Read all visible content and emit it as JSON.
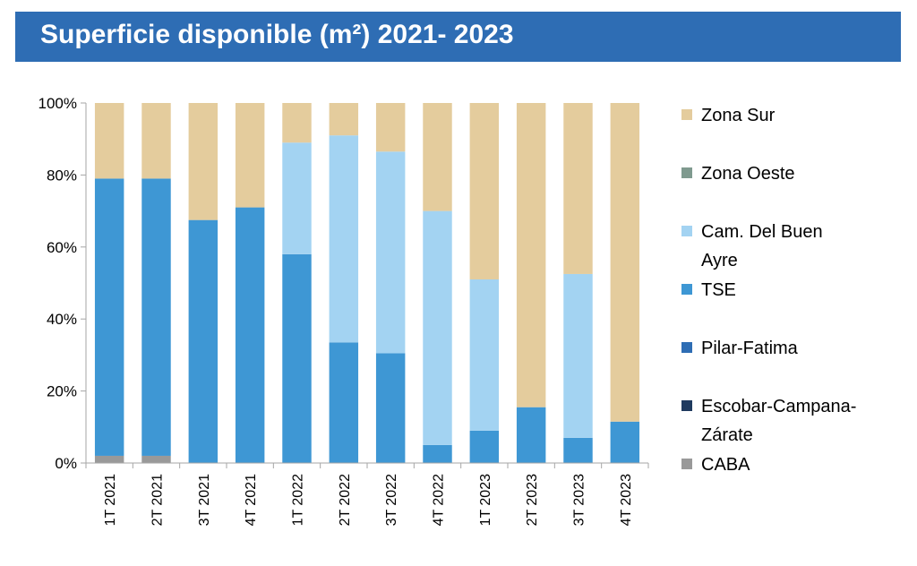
{
  "header": {
    "title": "Superficie disponible (m²) 2021- 2023"
  },
  "chart_data": {
    "type": "bar",
    "stacked": true,
    "normalized_percent": true,
    "title": "Superficie disponible (m²) 2021- 2023",
    "xlabel": "",
    "ylabel": "",
    "ylim": [
      0,
      100
    ],
    "y_ticks": [
      "0%",
      "20%",
      "40%",
      "60%",
      "80%",
      "100%"
    ],
    "categories": [
      "1T 2021",
      "2T 2021",
      "3T 2021",
      "4T 2021",
      "1T 2022",
      "2T 2022",
      "3T 2022",
      "4T 2022",
      "1T 2023",
      "2T 2023",
      "3T 2023",
      "4T 2023"
    ],
    "legend_position": "right",
    "series": [
      {
        "name": "CABA",
        "color": "#999999",
        "values": [
          2,
          2,
          0,
          0,
          0,
          0,
          0,
          0,
          0,
          0,
          0,
          0
        ]
      },
      {
        "name": "Escobar-Campana-Zárate",
        "color": "#1f3a5f",
        "values": [
          0,
          0,
          0,
          0,
          0,
          0,
          0,
          0,
          0,
          0,
          0,
          0
        ]
      },
      {
        "name": "Pilar-Fatima",
        "color": "#2e6db4",
        "values": [
          0,
          0,
          0,
          0,
          0,
          0,
          0,
          0,
          0,
          0,
          0,
          0
        ]
      },
      {
        "name": "TSE",
        "color": "#3e97d4",
        "values": [
          77,
          77,
          67.5,
          71,
          58,
          33.5,
          30.5,
          5,
          9,
          15.5,
          7,
          11.5
        ]
      },
      {
        "name": "Cam. Del Buen Ayre",
        "color": "#a3d3f2",
        "values": [
          0,
          0,
          0,
          0,
          31,
          57.5,
          56,
          65,
          42,
          0,
          45.5,
          0
        ]
      },
      {
        "name": "Zona Oeste",
        "color": "#7f9a8f",
        "values": [
          0,
          0,
          0,
          0,
          0,
          0,
          0,
          0,
          0,
          0,
          0,
          0
        ]
      },
      {
        "name": "Zona Sur",
        "color": "#e4cc9d",
        "values": [
          21,
          21,
          32.5,
          29,
          11,
          9,
          13.5,
          30,
          49,
          84.5,
          47.5,
          88.5
        ]
      }
    ],
    "legend": [
      {
        "label_lines": [
          "Zona Sur"
        ],
        "color": "#e4cc9d"
      },
      {
        "label_lines": [
          "Zona Oeste"
        ],
        "color": "#7f9a8f"
      },
      {
        "label_lines": [
          "Cam. Del Buen",
          "Ayre"
        ],
        "color": "#a3d3f2"
      },
      {
        "label_lines": [
          "TSE"
        ],
        "color": "#3e97d4"
      },
      {
        "label_lines": [
          "Pilar-Fatima"
        ],
        "color": "#2e6db4"
      },
      {
        "label_lines": [
          "Escobar-Campana-",
          "Zárate"
        ],
        "color": "#1f3a5f"
      },
      {
        "label_lines": [
          "CABA"
        ],
        "color": "#999999"
      }
    ]
  }
}
